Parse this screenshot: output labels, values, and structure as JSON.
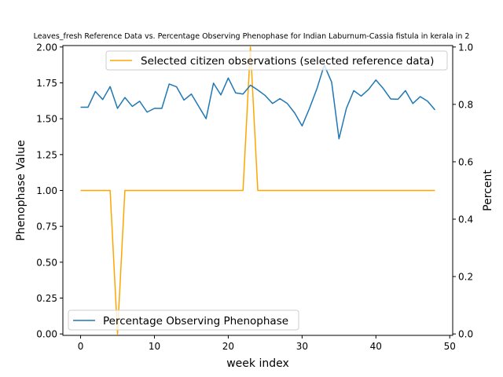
{
  "chart_data": {
    "type": "line",
    "title": "Leaves_fresh Reference Data vs. Percentage Observing Phenophase for Indian Laburnum-Cassia fistula in kerala in 2",
    "xlabel": "week index",
    "ylabel_left": "Phenophase Value",
    "ylabel_right": "Percent",
    "xlim": [
      -2.4,
      50.4
    ],
    "ylim_left": [
      -0.01,
      2.01
    ],
    "ylim_right": [
      -0.005,
      1.005
    ],
    "x_ticks": [
      0,
      10,
      20,
      30,
      40,
      50
    ],
    "y_left_ticks": [
      "0.00",
      "0.25",
      "0.50",
      "0.75",
      "1.00",
      "1.25",
      "1.50",
      "1.75",
      "2.00"
    ],
    "y_right_ticks": [
      "0.0",
      "0.2",
      "0.4",
      "0.6",
      "0.8",
      "1.0"
    ],
    "series": [
      {
        "name": "Selected citizen observations (selected reference data)",
        "color": "#ffa500",
        "axis": "left",
        "x": [
          0,
          1,
          2,
          3,
          4,
          5,
          6,
          7,
          8,
          9,
          10,
          11,
          12,
          13,
          14,
          15,
          16,
          17,
          18,
          19,
          20,
          21,
          22,
          23,
          24,
          25,
          26,
          27,
          28,
          29,
          30,
          31,
          32,
          33,
          34,
          35,
          36,
          37,
          38,
          39,
          40,
          41,
          42,
          43,
          44,
          45,
          46,
          47,
          48
        ],
        "values": [
          1,
          1,
          1,
          1,
          1,
          0,
          1,
          1,
          1,
          1,
          1,
          1,
          1,
          1,
          1,
          1,
          1,
          1,
          1,
          1,
          1,
          1,
          1,
          2,
          1,
          1,
          1,
          1,
          1,
          1,
          1,
          1,
          1,
          1,
          1,
          1,
          1,
          1,
          1,
          1,
          1,
          1,
          1,
          1,
          1,
          1,
          1,
          1,
          1
        ]
      },
      {
        "name": "Percentage Observing Phenophase",
        "color": "#1f77b4",
        "axis": "right",
        "x": [
          0,
          1,
          2,
          3,
          4,
          5,
          6,
          7,
          8,
          9,
          10,
          11,
          12,
          13,
          14,
          15,
          16,
          17,
          18,
          19,
          20,
          21,
          22,
          23,
          24,
          25,
          26,
          27,
          28,
          29,
          30,
          31,
          32,
          33,
          34,
          35,
          36,
          37,
          38,
          39,
          40,
          41,
          42,
          43,
          44,
          45,
          46,
          47,
          48
        ],
        "values": [
          0.79,
          0.79,
          0.845,
          0.817,
          0.862,
          0.786,
          0.824,
          0.793,
          0.811,
          0.773,
          0.786,
          0.786,
          0.871,
          0.861,
          0.815,
          0.836,
          0.793,
          0.75,
          0.874,
          0.833,
          0.892,
          0.84,
          0.836,
          0.867,
          0.85,
          0.831,
          0.803,
          0.82,
          0.803,
          0.77,
          0.725,
          0.786,
          0.854,
          0.937,
          0.878,
          0.68,
          0.786,
          0.848,
          0.829,
          0.852,
          0.885,
          0.855,
          0.819,
          0.818,
          0.848,
          0.803,
          0.827,
          0.811,
          0.781
        ]
      }
    ],
    "legends": [
      {
        "position": "upper-right",
        "entries": [
          "Selected citizen observations (selected reference data)"
        ]
      },
      {
        "position": "lower-left",
        "entries": [
          "Percentage Observing Phenophase"
        ]
      }
    ]
  }
}
